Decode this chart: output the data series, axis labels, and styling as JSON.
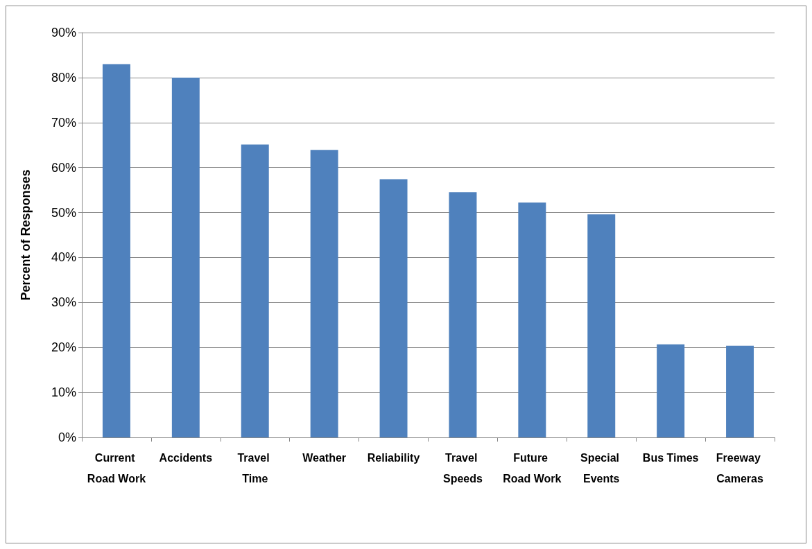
{
  "chart_data": {
    "type": "bar",
    "ylabel": "Percent of Responses",
    "categories": [
      "Current Road Work",
      "Accidents",
      "Travel Time",
      "Weather",
      "Reliability",
      "Travel Speeds",
      "Future Road Work",
      "Special Events",
      "Bus Times",
      "Freeway Cameras"
    ],
    "values": [
      83,
      80,
      65.1,
      63.9,
      57.4,
      54.5,
      52.2,
      49.6,
      20.7,
      20.4
    ],
    "color": "#4f81bd",
    "ylim": [
      0,
      90
    ],
    "yticks": [
      {
        "value": 0,
        "label": "0%"
      },
      {
        "value": 10,
        "label": "10%"
      },
      {
        "value": 20,
        "label": "20%"
      },
      {
        "value": 30,
        "label": "30%"
      },
      {
        "value": 40,
        "label": "40%"
      },
      {
        "value": 50,
        "label": "50%"
      },
      {
        "value": 60,
        "label": "60%"
      },
      {
        "value": 70,
        "label": "70%"
      },
      {
        "value": 80,
        "label": "80%"
      },
      {
        "value": 90,
        "label": "90%"
      }
    ],
    "grid": "y"
  }
}
